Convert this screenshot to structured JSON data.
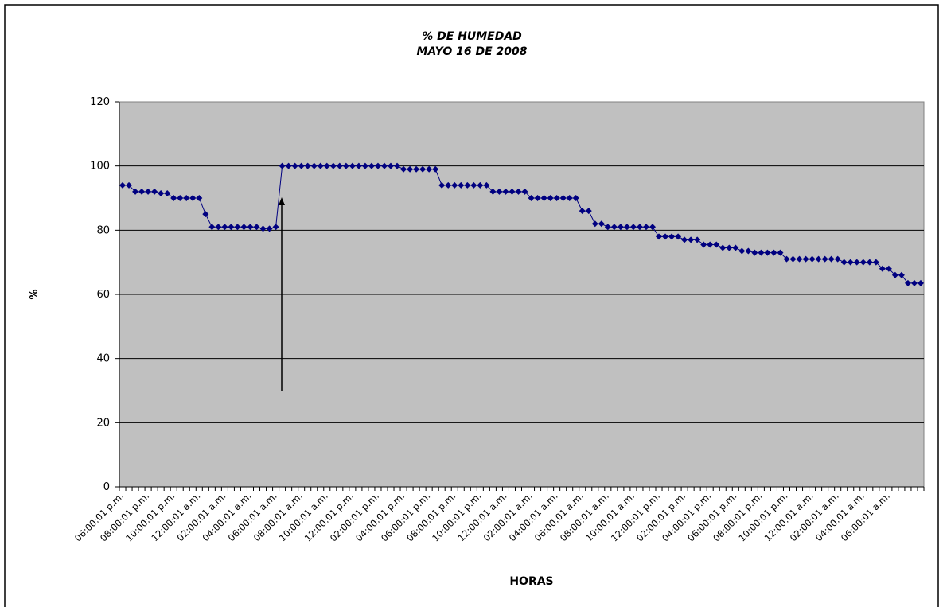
{
  "chart_data": {
    "type": "line",
    "title": "% DE HUMEDAD",
    "subtitle": "MAYO 16 DE 2008",
    "x_label": "HORAS",
    "y_label": "%",
    "color": "#000080",
    "grid": true,
    "ylim": [
      0,
      120
    ],
    "yticks": [
      0,
      20,
      40,
      60,
      80,
      100,
      120
    ],
    "categories": [
      "06:00:01 p.m.",
      null,
      null,
      null,
      "08:00:01 p.m.",
      null,
      null,
      null,
      "10:00:01 p.m.",
      null,
      null,
      null,
      "12:00:01 a.m.",
      null,
      null,
      null,
      "02:00:01 a.m.",
      null,
      null,
      null,
      "04:00:01 a.m.",
      null,
      null,
      null,
      "06:00:01 a.m.",
      null,
      null,
      null,
      "08:00:01 a.m.",
      null,
      null,
      null,
      "10:00:01 a.m.",
      null,
      null,
      null,
      "12:00:01 p.m.",
      null,
      null,
      null,
      "02:00:01 p.m.",
      null,
      null,
      null,
      "04:00:01 p.m.",
      null,
      null,
      null,
      "06:00:01 p.m.",
      null,
      null,
      null,
      "08:00:01 p.m.",
      null,
      null,
      null,
      "10:00:01 p.m.",
      null,
      null,
      null,
      "12:00:01 a.m.",
      null,
      null,
      null,
      "02:00:01 a.m.",
      null,
      null,
      null,
      "04:00:01 a.m.",
      null,
      null,
      null,
      "06:00:01 a.m.",
      null,
      null,
      null,
      "08:00:01 a.m.",
      null,
      null,
      null,
      "10:00:01 a.m.",
      null,
      null,
      null,
      "12:00:01 p.m.",
      null,
      null,
      null,
      "02:00:01 p.m.",
      null,
      null,
      null,
      "04:00:01 p.m.",
      null,
      null,
      null,
      "06:00:01 p.m.",
      null,
      null,
      null,
      "08:00:01 p.m.",
      null,
      null,
      null,
      "10:00:01 p.m.",
      null,
      null,
      null,
      "12:00:01 a.m.",
      null,
      null,
      null,
      "02:00:01 a.m.",
      null,
      null,
      null,
      "04:00:01 a.m.",
      null,
      null,
      null,
      "06:00:01 a.m.",
      null,
      null,
      null,
      null,
      null
    ],
    "values": [
      94,
      94,
      92,
      92,
      92,
      92,
      91.5,
      91.5,
      90,
      90,
      90,
      90,
      90,
      85,
      81,
      81,
      81,
      81,
      81,
      81,
      81,
      81,
      80.5,
      80.5,
      81,
      100,
      100,
      100,
      100,
      100,
      100,
      100,
      100,
      100,
      100,
      100,
      100,
      100,
      100,
      100,
      100,
      100,
      100,
      100,
      99,
      99,
      99,
      99,
      99,
      99,
      94,
      94,
      94,
      94,
      94,
      94,
      94,
      94,
      92,
      92,
      92,
      92,
      92,
      92,
      90,
      90,
      90,
      90,
      90,
      90,
      90,
      90,
      86,
      86,
      82,
      82,
      81,
      81,
      81,
      81,
      81,
      81,
      81,
      81,
      78,
      78,
      78,
      78,
      77,
      77,
      77,
      75.5,
      75.5,
      75.5,
      74.5,
      74.5,
      74.5,
      73.5,
      73.5,
      73,
      73,
      73,
      73,
      73,
      71,
      71,
      71,
      71,
      71,
      71,
      71,
      71,
      71,
      70,
      70,
      70,
      70,
      70,
      70,
      68,
      68,
      66,
      66,
      63.5,
      63.5,
      63.5
    ]
  }
}
